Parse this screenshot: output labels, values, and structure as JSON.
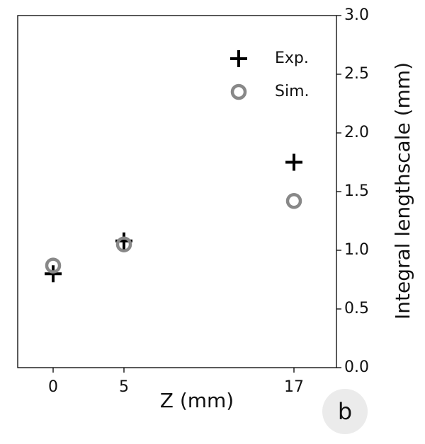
{
  "chart_data": {
    "type": "scatter",
    "x": [
      0,
      5,
      17
    ],
    "series": [
      {
        "name": "Exp.",
        "color": "#000000",
        "marker": "plus",
        "values": [
          0.8,
          1.08,
          1.75
        ]
      },
      {
        "name": "Sim.",
        "color": "#888888",
        "marker": "circle",
        "values": [
          0.87,
          1.05,
          1.42
        ]
      }
    ],
    "xlabel": "Z (mm)",
    "ylabel": "Integral lengthscale (mm)",
    "xlim": [
      -2.5,
      20
    ],
    "xticks": [
      0,
      5,
      17
    ],
    "ylim": [
      0,
      3
    ],
    "yticks": [
      {
        "value": 0,
        "label": "0.0"
      },
      {
        "value": 0.5,
        "label": "0.5"
      },
      {
        "value": 1,
        "label": "1.0"
      },
      {
        "value": 1.5,
        "label": "1.5"
      },
      {
        "value": 2,
        "label": "2.0"
      },
      {
        "value": 2.5,
        "label": "2.5"
      },
      {
        "value": 3,
        "label": "3.0"
      }
    ],
    "y_axis_side": "right",
    "legend": "upper right",
    "panel_label": "b"
  }
}
